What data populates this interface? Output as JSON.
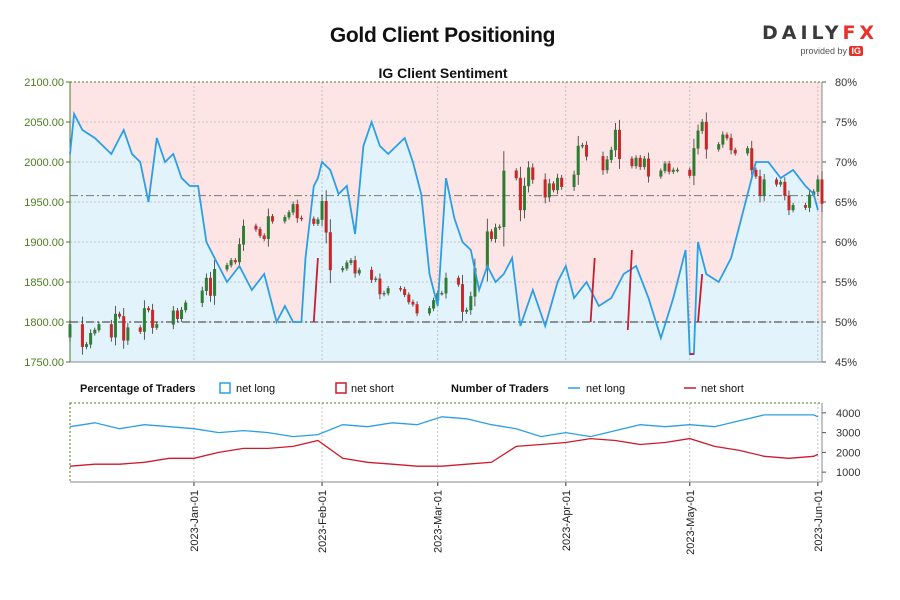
{
  "title": "Gold Client Positioning",
  "logo": {
    "brand_left": "DAILY",
    "brand_right": "FX",
    "provided_by": "provided by",
    "ig": "IG"
  },
  "chart_data": {
    "type": "candlestick",
    "subtitle": "IG Client Sentiment",
    "colors": {
      "net_long": "#2b9fe6",
      "net_short": "#cc1b2d",
      "bull_candle": "#2e7d32",
      "bear_candle": "#c62828",
      "long_fill": "#e3f3fc",
      "short_fill": "#fde5e5",
      "price_axis": "#4a7d1e"
    },
    "price_axis": {
      "min": 1750,
      "max": 2100,
      "ticks": [
        "1750.00",
        "1800.00",
        "1850.00",
        "1900.00",
        "1950.00",
        "2000.00",
        "2050.00",
        "2100.00"
      ]
    },
    "pct_axis": {
      "min": 45,
      "max": 80,
      "ticks": [
        "45%",
        "50%",
        "55%",
        "60%",
        "65%",
        "70%",
        "75%",
        "80%"
      ]
    },
    "count_axis": {
      "min": 500,
      "max": 4500,
      "ticks": [
        "1000",
        "2000",
        "3000",
        "4000"
      ]
    },
    "x_ticks": [
      "2023-Jan-01",
      "2023-Feb-01",
      "2023-Mar-01",
      "2023-Apr-01",
      "2023-May-01",
      "2023-Jun-01"
    ],
    "x_range": [
      "2022-12-02",
      "2023-06-02"
    ],
    "legend": {
      "pct_title": "Percentage of Traders",
      "pct_long": "net long",
      "pct_short": "net short",
      "num_title": "Number of Traders",
      "num_long": "net long",
      "num_short": "net short"
    },
    "series": [
      {
        "name": "net long",
        "x": [
          "2022-12-02",
          "2022-12-03",
          "2022-12-05",
          "2022-12-08",
          "2022-12-10",
          "2022-12-12",
          "2022-12-15",
          "2022-12-17",
          "2022-12-19",
          "2022-12-21",
          "2022-12-23",
          "2022-12-25",
          "2022-12-27",
          "2022-12-29",
          "2022-12-31",
          "2023-01-02",
          "2023-01-04",
          "2023-01-06",
          "2023-01-09",
          "2023-01-12",
          "2023-01-15",
          "2023-01-18",
          "2023-01-21",
          "2023-01-23",
          "2023-01-25",
          "2023-01-27",
          "2023-01-28",
          "2023-01-30",
          "2023-01-31",
          "2023-02-01",
          "2023-02-03",
          "2023-02-05",
          "2023-02-07",
          "2023-02-09",
          "2023-02-11",
          "2023-02-13",
          "2023-02-15",
          "2023-02-17",
          "2023-02-19",
          "2023-02-21",
          "2023-02-23",
          "2023-02-25",
          "2023-02-27",
          "2023-03-01",
          "2023-03-03",
          "2023-03-05",
          "2023-03-07",
          "2023-03-09",
          "2023-03-11",
          "2023-03-13",
          "2023-03-15",
          "2023-03-17",
          "2023-03-19",
          "2023-03-21",
          "2023-03-24",
          "2023-03-27",
          "2023-03-30",
          "2023-04-01",
          "2023-04-03",
          "2023-04-06",
          "2023-04-09",
          "2023-04-12",
          "2023-04-15",
          "2023-04-18",
          "2023-04-21",
          "2023-04-24",
          "2023-04-27",
          "2023-04-30",
          "2023-05-01",
          "2023-05-02",
          "2023-05-03",
          "2023-05-05",
          "2023-05-08",
          "2023-05-11",
          "2023-05-14",
          "2023-05-17",
          "2023-05-20",
          "2023-05-23",
          "2023-05-26",
          "2023-05-29",
          "2023-05-31",
          "2023-06-01"
        ],
        "values": [
          71,
          76,
          74,
          73,
          72,
          71,
          74,
          71,
          70,
          65,
          73,
          70,
          71,
          68,
          67,
          67,
          60,
          58,
          55,
          57,
          54,
          56,
          50,
          52,
          50,
          50,
          58,
          67,
          68,
          70,
          69,
          66,
          67,
          61,
          72,
          75,
          72,
          71,
          72,
          73,
          70,
          66,
          56,
          52,
          68,
          63,
          60,
          59,
          54,
          57,
          55,
          56,
          58,
          49.5,
          54,
          49.5,
          55,
          57,
          53,
          55,
          52,
          53,
          56,
          57,
          53,
          48,
          53,
          59,
          46,
          46,
          60,
          56,
          55,
          58,
          64,
          70,
          70,
          68,
          69,
          67,
          66,
          64
        ]
      },
      {
        "name": "net short",
        "x": [
          "2023-01-30",
          "2023-01-31",
          "2023-04-07",
          "2023-04-08",
          "2023-04-16",
          "2023-04-17",
          "2023-05-01",
          "2023-05-02",
          "2023-05-03",
          "2023-05-04"
        ],
        "values": [
          50,
          58,
          50,
          58,
          49,
          59,
          46,
          46,
          50,
          56
        ]
      },
      {
        "name": "net long traders",
        "x": [
          "2022-12-02",
          "2022-12-08",
          "2022-12-14",
          "2022-12-20",
          "2022-12-26",
          "2023-01-01",
          "2023-01-07",
          "2023-01-13",
          "2023-01-19",
          "2023-01-25",
          "2023-01-31",
          "2023-02-06",
          "2023-02-12",
          "2023-02-18",
          "2023-02-24",
          "2023-03-02",
          "2023-03-08",
          "2023-03-14",
          "2023-03-20",
          "2023-03-26",
          "2023-04-01",
          "2023-04-07",
          "2023-04-13",
          "2023-04-19",
          "2023-04-25",
          "2023-05-01",
          "2023-05-07",
          "2023-05-13",
          "2023-05-19",
          "2023-05-25",
          "2023-05-31",
          "2023-06-01"
        ],
        "values": [
          3300,
          3500,
          3200,
          3400,
          3300,
          3200,
          3000,
          3100,
          3000,
          2800,
          2900,
          3400,
          3300,
          3500,
          3400,
          3800,
          3700,
          3400,
          3200,
          2800,
          3000,
          2800,
          3100,
          3400,
          3300,
          3400,
          3300,
          3600,
          3900,
          3900,
          3900,
          3800
        ]
      },
      {
        "name": "net short traders",
        "x": [
          "2022-12-02",
          "2022-12-08",
          "2022-12-14",
          "2022-12-20",
          "2022-12-26",
          "2023-01-01",
          "2023-01-07",
          "2023-01-13",
          "2023-01-19",
          "2023-01-25",
          "2023-01-31",
          "2023-02-06",
          "2023-02-12",
          "2023-02-18",
          "2023-02-24",
          "2023-03-02",
          "2023-03-08",
          "2023-03-14",
          "2023-03-20",
          "2023-03-26",
          "2023-04-01",
          "2023-04-07",
          "2023-04-13",
          "2023-04-19",
          "2023-04-25",
          "2023-05-01",
          "2023-05-07",
          "2023-05-13",
          "2023-05-19",
          "2023-05-25",
          "2023-05-31",
          "2023-06-01"
        ],
        "values": [
          1300,
          1400,
          1400,
          1500,
          1700,
          1700,
          2000,
          2200,
          2200,
          2300,
          2600,
          1700,
          1500,
          1400,
          1300,
          1300,
          1400,
          1500,
          2300,
          2400,
          2500,
          2700,
          2600,
          2400,
          2500,
          2700,
          2300,
          2100,
          1800,
          1700,
          1800,
          1900
        ]
      }
    ],
    "candles": [
      {
        "x": "2022-12-02",
        "o": 1781,
        "c": 1797
      },
      {
        "x": "2022-12-05",
        "o": 1797,
        "c": 1769
      },
      {
        "x": "2022-12-06",
        "o": 1769,
        "c": 1772
      },
      {
        "x": "2022-12-07",
        "o": 1772,
        "c": 1786
      },
      {
        "x": "2022-12-08",
        "o": 1786,
        "c": 1790
      },
      {
        "x": "2022-12-09",
        "o": 1790,
        "c": 1797
      },
      {
        "x": "2022-12-12",
        "o": 1797,
        "c": 1781
      },
      {
        "x": "2022-12-13",
        "o": 1781,
        "c": 1810
      },
      {
        "x": "2022-12-14",
        "o": 1810,
        "c": 1807
      },
      {
        "x": "2022-12-15",
        "o": 1807,
        "c": 1777
      },
      {
        "x": "2022-12-16",
        "o": 1777,
        "c": 1793
      },
      {
        "x": "2022-12-19",
        "o": 1793,
        "c": 1788
      },
      {
        "x": "2022-12-20",
        "o": 1788,
        "c": 1817
      },
      {
        "x": "2022-12-21",
        "o": 1817,
        "c": 1815
      },
      {
        "x": "2022-12-22",
        "o": 1815,
        "c": 1793
      },
      {
        "x": "2022-12-23",
        "o": 1793,
        "c": 1797
      },
      {
        "x": "2022-12-27",
        "o": 1797,
        "c": 1814
      },
      {
        "x": "2022-12-28",
        "o": 1814,
        "c": 1804
      },
      {
        "x": "2022-12-29",
        "o": 1804,
        "c": 1815
      },
      {
        "x": "2022-12-30",
        "o": 1815,
        "c": 1824
      },
      {
        "x": "2023-01-03",
        "o": 1824,
        "c": 1839
      },
      {
        "x": "2023-01-04",
        "o": 1839,
        "c": 1855
      },
      {
        "x": "2023-01-05",
        "o": 1855,
        "c": 1833
      },
      {
        "x": "2023-01-06",
        "o": 1833,
        "c": 1866
      },
      {
        "x": "2023-01-09",
        "o": 1866,
        "c": 1871
      },
      {
        "x": "2023-01-10",
        "o": 1871,
        "c": 1877
      },
      {
        "x": "2023-01-11",
        "o": 1877,
        "c": 1875
      },
      {
        "x": "2023-01-12",
        "o": 1875,
        "c": 1897
      },
      {
        "x": "2023-01-13",
        "o": 1897,
        "c": 1920
      },
      {
        "x": "2023-01-16",
        "o": 1920,
        "c": 1916
      },
      {
        "x": "2023-01-17",
        "o": 1916,
        "c": 1908
      },
      {
        "x": "2023-01-18",
        "o": 1908,
        "c": 1904
      },
      {
        "x": "2023-01-19",
        "o": 1904,
        "c": 1932
      },
      {
        "x": "2023-01-20",
        "o": 1932,
        "c": 1926
      },
      {
        "x": "2023-01-23",
        "o": 1926,
        "c": 1931
      },
      {
        "x": "2023-01-24",
        "o": 1931,
        "c": 1937
      },
      {
        "x": "2023-01-25",
        "o": 1937,
        "c": 1947
      },
      {
        "x": "2023-01-26",
        "o": 1947,
        "c": 1930
      },
      {
        "x": "2023-01-27",
        "o": 1930,
        "c": 1929
      },
      {
        "x": "2023-01-30",
        "o": 1929,
        "c": 1923
      },
      {
        "x": "2023-01-31",
        "o": 1923,
        "c": 1928
      },
      {
        "x": "2023-02-01",
        "o": 1928,
        "c": 1951
      },
      {
        "x": "2023-02-02",
        "o": 1951,
        "c": 1912
      },
      {
        "x": "2023-02-03",
        "o": 1912,
        "c": 1865
      },
      {
        "x": "2023-02-06",
        "o": 1865,
        "c": 1867
      },
      {
        "x": "2023-02-07",
        "o": 1867,
        "c": 1874
      },
      {
        "x": "2023-02-08",
        "o": 1874,
        "c": 1877
      },
      {
        "x": "2023-02-09",
        "o": 1877,
        "c": 1861
      },
      {
        "x": "2023-02-10",
        "o": 1861,
        "c": 1865
      },
      {
        "x": "2023-02-13",
        "o": 1865,
        "c": 1853
      },
      {
        "x": "2023-02-14",
        "o": 1853,
        "c": 1854
      },
      {
        "x": "2023-02-15",
        "o": 1854,
        "c": 1835
      },
      {
        "x": "2023-02-16",
        "o": 1835,
        "c": 1836
      },
      {
        "x": "2023-02-17",
        "o": 1836,
        "c": 1842
      },
      {
        "x": "2023-02-20",
        "o": 1842,
        "c": 1841
      },
      {
        "x": "2023-02-21",
        "o": 1841,
        "c": 1834
      },
      {
        "x": "2023-02-22",
        "o": 1834,
        "c": 1825
      },
      {
        "x": "2023-02-23",
        "o": 1825,
        "c": 1822
      },
      {
        "x": "2023-02-24",
        "o": 1822,
        "c": 1811
      },
      {
        "x": "2023-02-27",
        "o": 1811,
        "c": 1817
      },
      {
        "x": "2023-02-28",
        "o": 1817,
        "c": 1827
      },
      {
        "x": "2023-03-01",
        "o": 1827,
        "c": 1836
      },
      {
        "x": "2023-03-02",
        "o": 1836,
        "c": 1836
      },
      {
        "x": "2023-03-03",
        "o": 1836,
        "c": 1855
      },
      {
        "x": "2023-03-06",
        "o": 1855,
        "c": 1847
      },
      {
        "x": "2023-03-07",
        "o": 1847,
        "c": 1813
      },
      {
        "x": "2023-03-08",
        "o": 1813,
        "c": 1815
      },
      {
        "x": "2023-03-09",
        "o": 1815,
        "c": 1832
      },
      {
        "x": "2023-03-10",
        "o": 1832,
        "c": 1867
      },
      {
        "x": "2023-03-13",
        "o": 1867,
        "c": 1913
      },
      {
        "x": "2023-03-14",
        "o": 1913,
        "c": 1904
      },
      {
        "x": "2023-03-15",
        "o": 1904,
        "c": 1918
      },
      {
        "x": "2023-03-16",
        "o": 1918,
        "c": 1919
      },
      {
        "x": "2023-03-17",
        "o": 1919,
        "c": 1989
      },
      {
        "x": "2023-03-20",
        "o": 1989,
        "c": 1980
      },
      {
        "x": "2023-03-21",
        "o": 1980,
        "c": 1940
      },
      {
        "x": "2023-03-22",
        "o": 1940,
        "c": 1970
      },
      {
        "x": "2023-03-23",
        "o": 1970,
        "c": 1993
      },
      {
        "x": "2023-03-24",
        "o": 1993,
        "c": 1978
      },
      {
        "x": "2023-03-27",
        "o": 1978,
        "c": 1956
      },
      {
        "x": "2023-03-28",
        "o": 1956,
        "c": 1973
      },
      {
        "x": "2023-03-29",
        "o": 1973,
        "c": 1965
      },
      {
        "x": "2023-03-30",
        "o": 1965,
        "c": 1980
      },
      {
        "x": "2023-03-31",
        "o": 1980,
        "c": 1969
      },
      {
        "x": "2023-04-03",
        "o": 1969,
        "c": 1984
      },
      {
        "x": "2023-04-04",
        "o": 1984,
        "c": 2020
      },
      {
        "x": "2023-04-05",
        "o": 2020,
        "c": 2021
      },
      {
        "x": "2023-04-06",
        "o": 2021,
        "c": 2007
      },
      {
        "x": "2023-04-10",
        "o": 2007,
        "c": 1990
      },
      {
        "x": "2023-04-11",
        "o": 1990,
        "c": 2003
      },
      {
        "x": "2023-04-12",
        "o": 2003,
        "c": 2015
      },
      {
        "x": "2023-04-13",
        "o": 2015,
        "c": 2040
      },
      {
        "x": "2023-04-14",
        "o": 2040,
        "c": 2004
      },
      {
        "x": "2023-04-17",
        "o": 2004,
        "c": 1995
      },
      {
        "x": "2023-04-18",
        "o": 1995,
        "c": 2005
      },
      {
        "x": "2023-04-19",
        "o": 2005,
        "c": 1994
      },
      {
        "x": "2023-04-20",
        "o": 1994,
        "c": 2004
      },
      {
        "x": "2023-04-21",
        "o": 2004,
        "c": 1982
      },
      {
        "x": "2023-04-24",
        "o": 1982,
        "c": 1989
      },
      {
        "x": "2023-04-25",
        "o": 1989,
        "c": 1998
      },
      {
        "x": "2023-04-26",
        "o": 1998,
        "c": 1988
      },
      {
        "x": "2023-04-27",
        "o": 1988,
        "c": 1990
      },
      {
        "x": "2023-04-28",
        "o": 1990,
        "c": 1990
      },
      {
        "x": "2023-05-01",
        "o": 1990,
        "c": 1983
      },
      {
        "x": "2023-05-02",
        "o": 1983,
        "c": 2017
      },
      {
        "x": "2023-05-03",
        "o": 2017,
        "c": 2039
      },
      {
        "x": "2023-05-04",
        "o": 2039,
        "c": 2050
      },
      {
        "x": "2023-05-05",
        "o": 2050,
        "c": 2016
      },
      {
        "x": "2023-05-08",
        "o": 2016,
        "c": 2022
      },
      {
        "x": "2023-05-09",
        "o": 2022,
        "c": 2034
      },
      {
        "x": "2023-05-10",
        "o": 2034,
        "c": 2030
      },
      {
        "x": "2023-05-11",
        "o": 2030,
        "c": 2015
      },
      {
        "x": "2023-05-12",
        "o": 2015,
        "c": 2011
      },
      {
        "x": "2023-05-15",
        "o": 2011,
        "c": 2017
      },
      {
        "x": "2023-05-16",
        "o": 2017,
        "c": 1990
      },
      {
        "x": "2023-05-17",
        "o": 1990,
        "c": 1982
      },
      {
        "x": "2023-05-18",
        "o": 1982,
        "c": 1958
      },
      {
        "x": "2023-05-19",
        "o": 1958,
        "c": 1978
      },
      {
        "x": "2023-05-22",
        "o": 1978,
        "c": 1972
      },
      {
        "x": "2023-05-23",
        "o": 1972,
        "c": 1975
      },
      {
        "x": "2023-05-24",
        "o": 1975,
        "c": 1958
      },
      {
        "x": "2023-05-25",
        "o": 1958,
        "c": 1940
      },
      {
        "x": "2023-05-26",
        "o": 1940,
        "c": 1946
      },
      {
        "x": "2023-05-29",
        "o": 1946,
        "c": 1943
      },
      {
        "x": "2023-05-30",
        "o": 1943,
        "c": 1959
      },
      {
        "x": "2023-05-31",
        "o": 1959,
        "c": 1963
      },
      {
        "x": "2023-06-01",
        "o": 1963,
        "c": 1978
      },
      {
        "x": "2023-06-02",
        "o": 1978,
        "c": 1948
      }
    ]
  }
}
